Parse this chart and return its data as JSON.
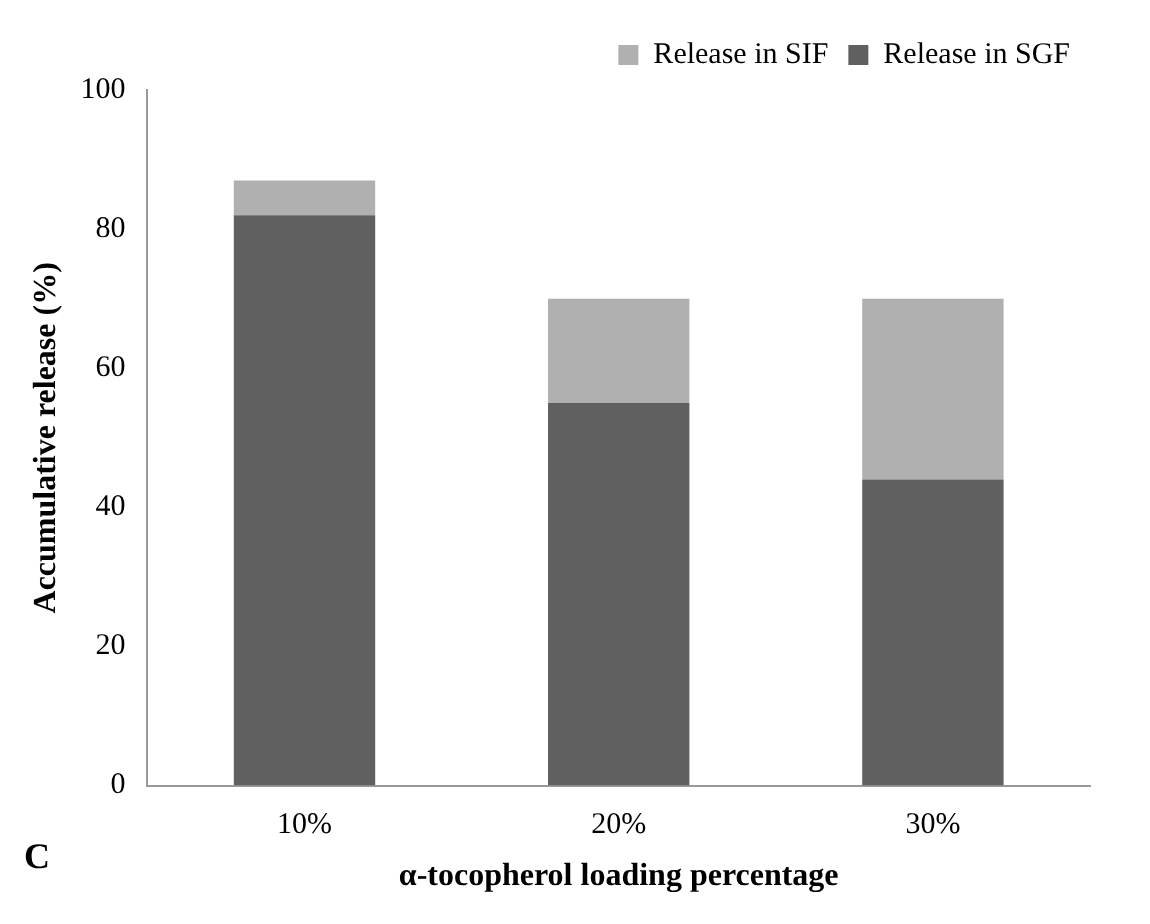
{
  "chart_data": {
    "type": "bar",
    "stacked": true,
    "xlabel": "α-tocopherol loading percentage",
    "ylabel": "Accumulative release (%)",
    "categories": [
      "10%",
      "20%",
      "30%"
    ],
    "series": [
      {
        "name": "Release in SGF",
        "color": "#606060",
        "values": [
          82,
          55,
          44
        ]
      },
      {
        "name": "Release in SIF",
        "color": "#b0b0b0",
        "values": [
          5,
          15,
          26
        ]
      }
    ],
    "ylim": [
      0,
      100
    ],
    "yticks": [
      0,
      20,
      40,
      60,
      80,
      100
    ],
    "grid": false,
    "legend": "top right",
    "annotations": [
      "C"
    ]
  }
}
